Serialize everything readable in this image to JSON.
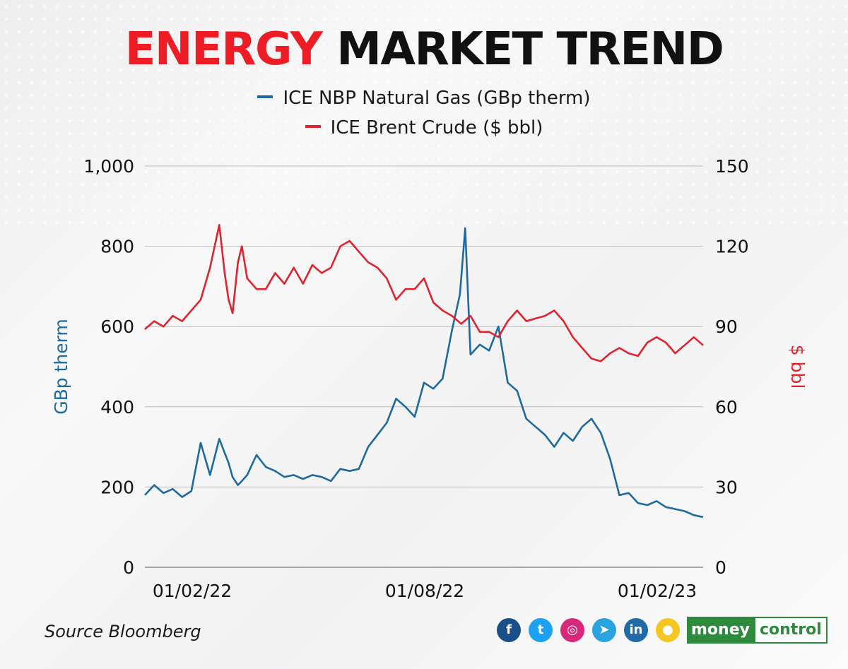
{
  "header": {
    "title_accent": "ENERGY",
    "title_rest": "MARKET TREND"
  },
  "footer": {
    "source": "Source Bloomberg"
  },
  "brand": {
    "part1": "money",
    "part2": "control"
  },
  "social": [
    {
      "name": "facebook-icon",
      "glyph": "f",
      "color": "#1b4f88"
    },
    {
      "name": "twitter-icon",
      "glyph": "t",
      "color": "#1da1f2"
    },
    {
      "name": "instagram-icon",
      "glyph": "◎",
      "color": "#d6297b"
    },
    {
      "name": "telegram-icon",
      "glyph": "➤",
      "color": "#2aa3de"
    },
    {
      "name": "linkedin-icon",
      "glyph": "in",
      "color": "#1f6aa7"
    },
    {
      "name": "koo-icon",
      "glyph": "●",
      "color": "#f3c622"
    }
  ],
  "chart_data": {
    "type": "line",
    "legend_position": "top-center",
    "grid": true,
    "x_ticks": [
      "01/02/22",
      "01/08/22",
      "01/02/23"
    ],
    "y_left": {
      "label": "GBp therm",
      "ticks": [
        "0",
        "200",
        "400",
        "600",
        "800",
        "1,000"
      ],
      "range": [
        0,
        1000
      ],
      "color": "#1e6a9e"
    },
    "y_right": {
      "label": "$ bbl",
      "ticks": [
        "0",
        "30",
        "60",
        "90",
        "120",
        "150"
      ],
      "range": [
        0,
        150
      ],
      "color": "#e0242f"
    },
    "series": [
      {
        "name": "ICE NBP Natural Gas (GBp therm)",
        "axis": "left",
        "color": "#1e6a9e",
        "x": [
          "2022-01-01",
          "2022-01-08",
          "2022-01-15",
          "2022-01-22",
          "2022-01-29",
          "2022-02-05",
          "2022-02-12",
          "2022-02-19",
          "2022-02-26",
          "2022-03-02",
          "2022-03-05",
          "2022-03-08",
          "2022-03-12",
          "2022-03-15",
          "2022-03-19",
          "2022-03-26",
          "2022-04-02",
          "2022-04-09",
          "2022-04-16",
          "2022-04-23",
          "2022-04-30",
          "2022-05-07",
          "2022-05-14",
          "2022-05-21",
          "2022-05-28",
          "2022-06-04",
          "2022-06-11",
          "2022-06-18",
          "2022-06-25",
          "2022-07-02",
          "2022-07-09",
          "2022-07-16",
          "2022-07-23",
          "2022-07-30",
          "2022-08-06",
          "2022-08-13",
          "2022-08-20",
          "2022-08-26",
          "2022-08-30",
          "2022-09-03",
          "2022-09-10",
          "2022-09-17",
          "2022-09-24",
          "2022-10-01",
          "2022-10-08",
          "2022-10-15",
          "2022-10-22",
          "2022-10-29",
          "2022-11-05",
          "2022-11-12",
          "2022-11-19",
          "2022-11-26",
          "2022-12-03",
          "2022-12-10",
          "2022-12-17",
          "2022-12-24",
          "2022-12-31",
          "2023-01-07",
          "2023-01-14",
          "2023-01-21",
          "2023-01-28",
          "2023-02-04",
          "2023-02-11",
          "2023-02-18",
          "2023-02-25"
        ],
        "values": [
          180,
          205,
          185,
          195,
          175,
          190,
          310,
          230,
          320,
          285,
          260,
          225,
          205,
          215,
          230,
          280,
          250,
          240,
          225,
          230,
          220,
          230,
          225,
          215,
          245,
          240,
          245,
          300,
          330,
          360,
          420,
          400,
          375,
          460,
          445,
          470,
          590,
          680,
          845,
          530,
          555,
          540,
          600,
          460,
          440,
          370,
          350,
          330,
          300,
          335,
          315,
          350,
          370,
          335,
          270,
          180,
          185,
          160,
          155,
          165,
          150,
          145,
          140,
          130,
          125
        ]
      },
      {
        "name": "ICE Brent Crude ($ bbl)",
        "axis": "right",
        "color": "#e0242f",
        "x": [
          "2022-01-01",
          "2022-01-08",
          "2022-01-15",
          "2022-01-22",
          "2022-01-29",
          "2022-02-05",
          "2022-02-12",
          "2022-02-19",
          "2022-02-26",
          "2022-03-02",
          "2022-03-05",
          "2022-03-08",
          "2022-03-12",
          "2022-03-15",
          "2022-03-19",
          "2022-03-26",
          "2022-04-02",
          "2022-04-09",
          "2022-04-16",
          "2022-04-23",
          "2022-04-30",
          "2022-05-07",
          "2022-05-14",
          "2022-05-21",
          "2022-05-28",
          "2022-06-04",
          "2022-06-11",
          "2022-06-18",
          "2022-06-25",
          "2022-07-02",
          "2022-07-09",
          "2022-07-16",
          "2022-07-23",
          "2022-07-30",
          "2022-08-06",
          "2022-08-13",
          "2022-08-20",
          "2022-08-27",
          "2022-09-03",
          "2022-09-10",
          "2022-09-17",
          "2022-09-24",
          "2022-10-01",
          "2022-10-08",
          "2022-10-15",
          "2022-10-22",
          "2022-10-29",
          "2022-11-05",
          "2022-11-12",
          "2022-11-19",
          "2022-11-26",
          "2022-12-03",
          "2022-12-10",
          "2022-12-17",
          "2022-12-24",
          "2022-12-31",
          "2023-01-07",
          "2023-01-14",
          "2023-01-21",
          "2023-01-28",
          "2023-02-04",
          "2023-02-11",
          "2023-02-18",
          "2023-02-25"
        ],
        "values": [
          89,
          92,
          90,
          94,
          92,
          96,
          100,
          112,
          128,
          110,
          100,
          95,
          114,
          120,
          108,
          104,
          104,
          110,
          106,
          112,
          106,
          113,
          110,
          112,
          120,
          122,
          118,
          114,
          112,
          108,
          100,
          104,
          104,
          108,
          99,
          96,
          94,
          91,
          94,
          88,
          88,
          86,
          92,
          96,
          92,
          93,
          94,
          96,
          92,
          86,
          82,
          78,
          77,
          80,
          82,
          80,
          79,
          84,
          86,
          84,
          80,
          83,
          86,
          83
        ]
      }
    ]
  }
}
